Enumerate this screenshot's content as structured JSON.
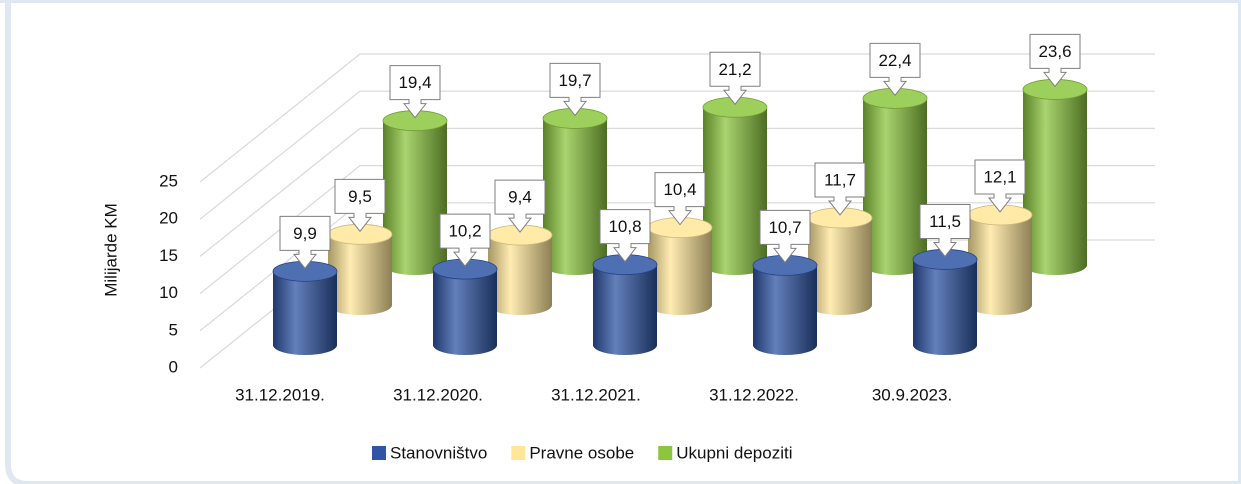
{
  "chart_data": {
    "type": "cylinder3d",
    "y_label": "Milijarde KM",
    "categories": [
      "31.12.2019.",
      "31.12.2020.",
      "31.12.2021.",
      "31.12.2022.",
      "30.9.2023."
    ],
    "series": [
      {
        "name": "Stanovništvo",
        "color": "#2f55a4",
        "values": [
          9.9,
          10.2,
          10.8,
          10.7,
          11.5
        ],
        "value_labels": [
          "9,9",
          "10,2",
          "10,8",
          "10,7",
          "11,5"
        ]
      },
      {
        "name": "Pravne osobe",
        "color": "#ffe699",
        "values": [
          9.5,
          9.4,
          10.4,
          11.7,
          12.1
        ],
        "value_labels": [
          "9,5",
          "9,4",
          "10,4",
          "11,7",
          "12,1"
        ]
      },
      {
        "name": "Ukupni depoziti",
        "color": "#8cc63f",
        "values": [
          19.4,
          19.7,
          21.2,
          22.4,
          23.6
        ],
        "value_labels": [
          "19,4",
          "19,7",
          "21,2",
          "22,4",
          "23,6"
        ]
      }
    ],
    "ylim": [
      0,
      25
    ],
    "yticks": [
      0,
      5,
      10,
      15,
      20,
      25
    ],
    "grid": true,
    "legend": "bottom"
  }
}
